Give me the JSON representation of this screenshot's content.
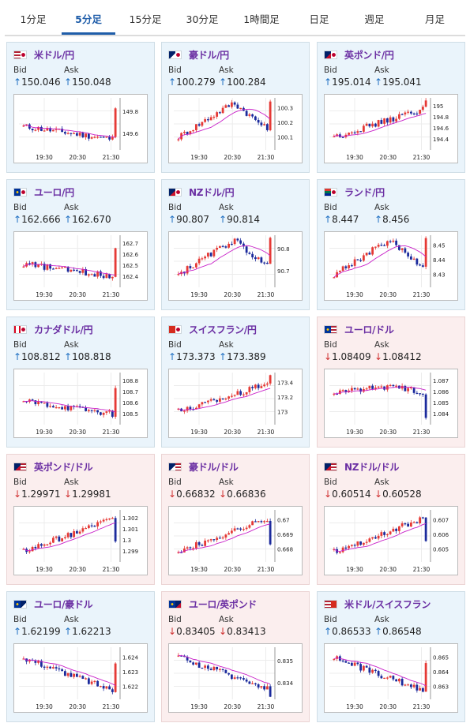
{
  "tabs": [
    {
      "label": "1分足",
      "active": false
    },
    {
      "label": "5分足",
      "active": true
    },
    {
      "label": "15分足",
      "active": false
    },
    {
      "label": "30分足",
      "active": false
    },
    {
      "label": "1時間足",
      "active": false
    },
    {
      "label": "日足",
      "active": false
    },
    {
      "label": "週足",
      "active": false
    },
    {
      "label": "月足",
      "active": false
    }
  ],
  "labels": {
    "bid": "Bid",
    "ask": "Ask"
  },
  "x_ticks": [
    "19:30",
    "20:30",
    "21:30"
  ],
  "colors": {
    "up_candle": "#e53935",
    "down_candle": "#1b2a9c",
    "ma_line": "#c81fc8",
    "up_arrow": "#1f6fc2",
    "down_arrow": "#d03030"
  },
  "pairs": [
    {
      "name": "米ドル/円",
      "direction": "up",
      "bid": "150.046",
      "ask": "150.048",
      "flag": "us-jp",
      "y_ticks": [
        "149.8",
        "149.6"
      ],
      "ylim": [
        149.4,
        150.0
      ],
      "trend": "flat-down-spike"
    },
    {
      "name": "豪ドル/円",
      "direction": "up",
      "bid": "100.279",
      "ask": "100.284",
      "flag": "au-jp",
      "y_ticks": [
        "100.3",
        "100.2",
        "100.1"
      ],
      "ylim": [
        99.98,
        100.32
      ],
      "trend": "up-then-down"
    },
    {
      "name": "英ポンド/円",
      "direction": "up",
      "bid": "195.014",
      "ask": "195.041",
      "flag": "gb-jp",
      "y_ticks": [
        "195",
        "194.8",
        "194.6",
        "194.4"
      ],
      "ylim": [
        194.32,
        195.05
      ],
      "trend": "up"
    },
    {
      "name": "ユーロ/円",
      "direction": "up",
      "bid": "162.666",
      "ask": "162.670",
      "flag": "eu-jp",
      "y_ticks": [
        "162.7",
        "162.6",
        "162.5",
        "162.4"
      ],
      "ylim": [
        162.36,
        162.72
      ],
      "trend": "flat-down-spike"
    },
    {
      "name": "NZドル/円",
      "direction": "up",
      "bid": "90.807",
      "ask": "90.814",
      "flag": "nz-jp",
      "y_ticks": [
        "90.8",
        "90.7"
      ],
      "ylim": [
        90.66,
        90.9
      ],
      "trend": "up-then-down"
    },
    {
      "name": "ランド/円",
      "direction": "up",
      "bid": "8.447",
      "ask": "8.456",
      "flag": "za-jp",
      "y_ticks": [
        "8.45",
        "8.44",
        "8.43"
      ],
      "ylim": [
        8.425,
        8.458
      ],
      "trend": "up-then-down"
    },
    {
      "name": "カナダドル/円",
      "direction": "up",
      "bid": "108.812",
      "ask": "108.818",
      "flag": "ca-jp",
      "y_ticks": [
        "108.8",
        "108.7",
        "108.6",
        "108.5"
      ],
      "ylim": [
        108.46,
        108.83
      ],
      "trend": "flat-down-spike"
    },
    {
      "name": "スイスフラン/円",
      "direction": "up",
      "bid": "173.373",
      "ask": "173.389",
      "flag": "ch-jp",
      "y_ticks": [
        "173.4",
        "173.2",
        "173"
      ],
      "ylim": [
        172.95,
        173.45
      ],
      "trend": "up"
    },
    {
      "name": "ユーロ/ドル",
      "direction": "down",
      "bid": "1.08409",
      "ask": "1.08412",
      "flag": "eu-us",
      "y_ticks": [
        "1.087",
        "1.086",
        "1.085",
        "1.084"
      ],
      "ylim": [
        1.0837,
        1.0873
      ],
      "trend": "flat-drop"
    },
    {
      "name": "英ポンド/ドル",
      "direction": "down",
      "bid": "1.29971",
      "ask": "1.29981",
      "flag": "gb-us",
      "y_ticks": [
        "1.302",
        "1.301",
        "1.3",
        "1.299"
      ],
      "ylim": [
        1.2987,
        1.3023
      ],
      "trend": "up-drop"
    },
    {
      "name": "豪ドル/ドル",
      "direction": "down",
      "bid": "0.66832",
      "ask": "0.66836",
      "flag": "au-us",
      "y_ticks": [
        "0.67",
        "0.669",
        "0.668"
      ],
      "ylim": [
        0.6678,
        0.6703
      ],
      "trend": "up-drop"
    },
    {
      "name": "NZドル/ドル",
      "direction": "down",
      "bid": "0.60514",
      "ask": "0.60528",
      "flag": "nz-us",
      "y_ticks": [
        "0.607",
        "0.606",
        "0.605"
      ],
      "ylim": [
        0.6048,
        0.6074
      ],
      "trend": "up-drop"
    },
    {
      "name": "ユーロ/豪ドル",
      "direction": "up",
      "bid": "1.62199",
      "ask": "1.62213",
      "flag": "eu-au",
      "y_ticks": [
        "1.624",
        "1.623",
        "1.622"
      ],
      "ylim": [
        1.6214,
        1.6246
      ],
      "trend": "down-spike"
    },
    {
      "name": "ユーロ/英ポンド",
      "direction": "down",
      "bid": "0.83405",
      "ask": "0.83413",
      "flag": "eu-gb",
      "y_ticks": [
        "0.835",
        "0.834"
      ],
      "ylim": [
        0.8338,
        0.8359
      ],
      "trend": "down"
    },
    {
      "name": "米ドル/スイスフラン",
      "direction": "up",
      "bid": "0.86533",
      "ask": "0.86548",
      "flag": "us-ch",
      "y_ticks": [
        "0.865",
        "0.864",
        "0.863"
      ],
      "ylim": [
        0.8627,
        0.8657
      ],
      "trend": "down-spike"
    }
  ]
}
